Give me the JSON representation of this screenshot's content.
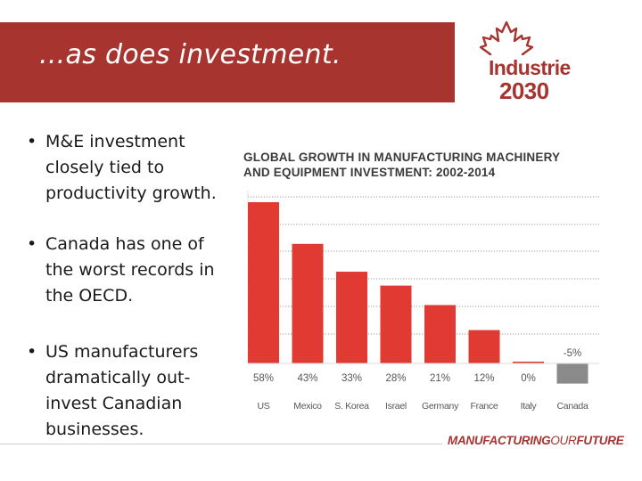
{
  "slide": {
    "title": "...as does investment.",
    "bullets": [
      "M&E investment closely tied to productivity growth.",
      "Canada has one of the worst records in the OECD.",
      "US manufacturers dramatically out-invest Canadian businesses."
    ]
  },
  "logo": {
    "line1": "Industrie",
    "line2": "2030"
  },
  "footer": {
    "brand_bold": "MANUFACTURING",
    "brand_thin": "OUR",
    "brand_end": "FUTURE"
  },
  "colors": {
    "header": "#a7342f",
    "bar": "#e03a33",
    "bar_negative": "#8a8a8a",
    "accent": "#a7342f"
  },
  "chart_data": {
    "type": "bar",
    "title_line1": "GLOBAL GROWTH IN MANUFACTURING MACHINERY",
    "title_line2": "AND EQUIPMENT INVESTMENT: 2002-2014",
    "categories": [
      "US",
      "Mexico",
      "S. Korea",
      "Israel",
      "Germany",
      "France",
      "Italy",
      "Canada"
    ],
    "values": [
      58,
      43,
      33,
      28,
      21,
      12,
      0,
      -5
    ],
    "labels": [
      "58%",
      "43%",
      "33%",
      "28%",
      "21%",
      "12%",
      "0%",
      "-5%"
    ],
    "ylim": [
      -5,
      60
    ],
    "unit": "%",
    "grid": true
  }
}
